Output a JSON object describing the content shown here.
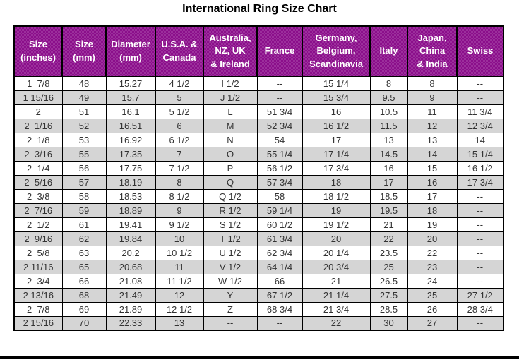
{
  "title": "International Ring Size Chart",
  "colors": {
    "header_bg": "#8B0F8B",
    "header_bg_speckle": "#9C2F9C",
    "header_text": "#FFFFFF",
    "row_alt_bg": "#CDCDCD",
    "row_alt_speckle": "#DDDDDD",
    "border": "#000000",
    "cell_text": "#333333",
    "title_text": "#000000"
  },
  "chart_data": {
    "type": "table",
    "title": "International Ring Size Chart",
    "columns": [
      "Size\n(inches)",
      "Size\n(mm)",
      "Diameter\n(mm)",
      "U.S.A. &\nCanada",
      "Australia,\nNZ, UK\n& Ireland",
      "France",
      "Germany,\nBelgium,\nScandinavia",
      "Italy",
      "Japan,\nChina\n& India",
      "Swiss"
    ],
    "rows": [
      [
        "1  7/8",
        "48",
        "15.27",
        "4 1/2",
        "I 1/2",
        "--",
        "15 1/4",
        "8",
        "8",
        "--"
      ],
      [
        "1 15/16",
        "49",
        "15.7",
        "5",
        "J 1/2",
        "--",
        "15 3/4",
        "9.5",
        "9",
        "--"
      ],
      [
        "2",
        "51",
        "16.1",
        "5 1/2",
        "L",
        "51 3/4",
        "16",
        "10.5",
        "11",
        "11 3/4"
      ],
      [
        "2  1/16",
        "52",
        "16.51",
        "6",
        "M",
        "52 3/4",
        "16 1/2",
        "11.5",
        "12",
        "12 3/4"
      ],
      [
        "2  1/8",
        "53",
        "16.92",
        "6 1/2",
        "N",
        "54",
        "17",
        "13",
        "13",
        "14"
      ],
      [
        "2  3/16",
        "55",
        "17.35",
        "7",
        "O",
        "55 1/4",
        "17 1/4",
        "14.5",
        "14",
        "15 1/4"
      ],
      [
        "2  1/4",
        "56",
        "17.75",
        "7 1/2",
        "P",
        "56 1/2",
        "17 3/4",
        "16",
        "15",
        "16 1/2"
      ],
      [
        "2  5/16",
        "57",
        "18.19",
        "8",
        "Q",
        "57 3/4",
        "18",
        "17",
        "16",
        "17 3/4"
      ],
      [
        "2  3/8",
        "58",
        "18.53",
        "8 1/2",
        "Q 1/2",
        "58",
        "18 1/2",
        "18.5",
        "17",
        "--"
      ],
      [
        "2  7/16",
        "59",
        "18.89",
        "9",
        "R 1/2",
        "59 1/4",
        "19",
        "19.5",
        "18",
        "--"
      ],
      [
        "2  1/2",
        "61",
        "19.41",
        "9 1/2",
        "S 1/2",
        "60 1/2",
        "19 1/2",
        "21",
        "19",
        "--"
      ],
      [
        "2  9/16",
        "62",
        "19.84",
        "10",
        "T 1/2",
        "61 3/4",
        "20",
        "22",
        "20",
        "--"
      ],
      [
        "2  5/8",
        "63",
        "20.2",
        "10 1/2",
        "U 1/2",
        "62 3/4",
        "20 1/4",
        "23.5",
        "22",
        "--"
      ],
      [
        "2 11/16",
        "65",
        "20.68",
        "11",
        "V 1/2",
        "64 1/4",
        "20 3/4",
        "25",
        "23",
        "--"
      ],
      [
        "2  3/4",
        "66",
        "21.08",
        "11 1/2",
        "W 1/2",
        "66",
        "21",
        "26.5",
        "24",
        "--"
      ],
      [
        "2 13/16",
        "68",
        "21.49",
        "12",
        "Y",
        "67 1/2",
        "21 1/4",
        "27.5",
        "25",
        "27 1/2"
      ],
      [
        "2  7/8",
        "69",
        "21.89",
        "12 1/2",
        "Z",
        "68 3/4",
        "21 3/4",
        "28.5",
        "26",
        "28 3/4"
      ],
      [
        "2 15/16",
        "70",
        "22.33",
        "13",
        "--",
        "--",
        "22",
        "30",
        "27",
        "--"
      ]
    ]
  }
}
